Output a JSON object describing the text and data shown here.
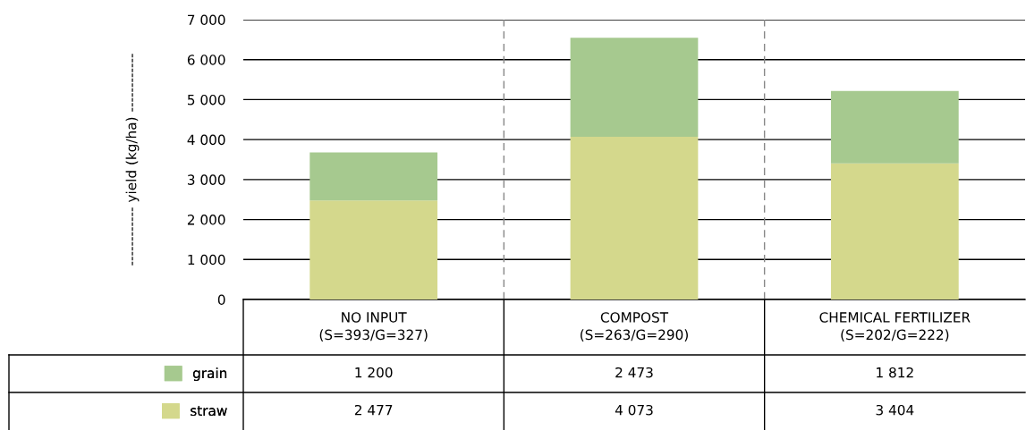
{
  "chart_data": {
    "type": "bar",
    "stacked": true,
    "ylabel": "------------ yield (kg/ha) ------------",
    "categories": [
      "NO INPUT\n(S=393/G=327)",
      "COMPOST\n(S=263/G=290)",
      "CHEMICAL FERTILIZER\n(S=202/G=222)"
    ],
    "series": [
      {
        "name": "straw",
        "color": "#d4d88c",
        "values": [
          2477,
          4073,
          3404
        ],
        "value_labels": [
          "2 477",
          "4 073",
          "3 404"
        ]
      },
      {
        "name": "grain",
        "color": "#a6c98f",
        "values": [
          1200,
          2473,
          1812
        ],
        "value_labels": [
          "1 200",
          "2 473",
          "1 812"
        ]
      }
    ],
    "ylim": [
      0,
      7000
    ],
    "yticks": [
      0,
      {
        "value": 1000,
        "label": "1 000"
      },
      {
        "value": 2000,
        "label": "2 000"
      },
      {
        "value": 3000,
        "label": "3 000"
      },
      {
        "value": 4000,
        "label": "4 000"
      },
      {
        "value": 5000,
        "label": "5 000"
      },
      {
        "value": 6000,
        "label": "6 000"
      },
      {
        "value": 7000,
        "label": "7 000"
      }
    ],
    "grid": "y",
    "legend": "bottom left"
  }
}
